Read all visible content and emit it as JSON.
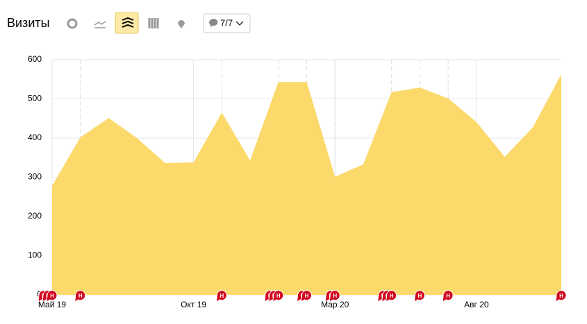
{
  "chart_data": {
    "type": "area",
    "title": "Визиты",
    "categories": [
      "Май 19",
      null,
      null,
      null,
      null,
      "Окт 19",
      null,
      null,
      null,
      null,
      "Мар 20",
      null,
      null,
      null,
      null,
      "Авг 20",
      null,
      null,
      null
    ],
    "series": [
      {
        "name": "Визиты",
        "color": "#fbd96a",
        "values": [
          278,
          402,
          451,
          400,
          336,
          338,
          465,
          343,
          543,
          543,
          301,
          333,
          517,
          529,
          501,
          441,
          352,
          428,
          563
        ]
      }
    ],
    "ylim": [
      0,
      600
    ],
    "yticks": [
      0,
      100,
      200,
      300,
      400,
      500,
      600
    ],
    "grid": true,
    "annotations": [
      {
        "category": 0,
        "label": "Н"
      },
      {
        "category": 0,
        "label": "Н"
      },
      {
        "category": 0,
        "label": "Н"
      },
      {
        "category": 1,
        "label": "Н"
      },
      {
        "category": 6,
        "label": "Н"
      },
      {
        "category": 8,
        "label": "Н"
      },
      {
        "category": 8,
        "label": "Н"
      },
      {
        "category": 8,
        "label": "Н"
      },
      {
        "category": 9,
        "label": "Н"
      },
      {
        "category": 9,
        "label": "Н"
      },
      {
        "category": 10,
        "label": "Н"
      },
      {
        "category": 10,
        "label": "Н"
      },
      {
        "category": 12,
        "label": "Н"
      },
      {
        "category": 12,
        "label": "Н"
      },
      {
        "category": 12,
        "label": "Н"
      },
      {
        "category": 13,
        "label": "Н"
      },
      {
        "category": 14,
        "label": "Н"
      },
      {
        "category": 18,
        "label": "Н"
      }
    ]
  },
  "toolbar": {
    "filter": "7/7"
  }
}
